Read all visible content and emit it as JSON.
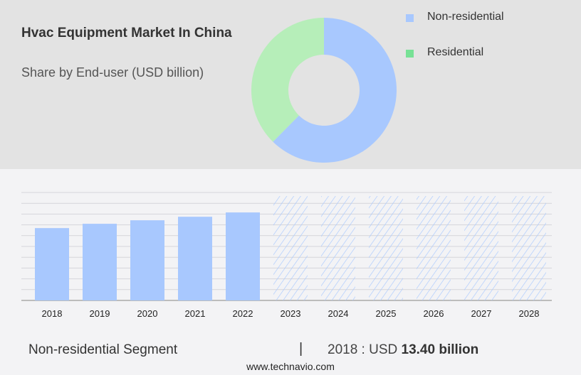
{
  "header": {
    "title": "Hvac Equipment Market In China",
    "subtitle": "Share by End-user (USD billion)"
  },
  "colors": {
    "non_residential": "#a8c8fe",
    "residential": "#b6eeb9",
    "residential_legend": "#77e195",
    "grid": "#d5d5da",
    "axis": "#aaaaaa"
  },
  "chart_data": [
    {
      "type": "pie",
      "style": "donut",
      "slices": [
        {
          "name": "Non-residential",
          "share": 62.4
        },
        {
          "name": "Residential",
          "share": 37.6
        }
      ],
      "legend": [
        "Non-residential",
        "Residential"
      ],
      "legend_placement": "right"
    },
    {
      "type": "bar",
      "categories": [
        "2018",
        "2019",
        "2020",
        "2021",
        "2022",
        "2023",
        "2024",
        "2025",
        "2026",
        "2027",
        "2028"
      ],
      "values": [
        13.4,
        14.2,
        14.85,
        15.5,
        16.3,
        null,
        null,
        null,
        null,
        null,
        null
      ],
      "forecast_categories": [
        "2023",
        "2024",
        "2025",
        "2026",
        "2027",
        "2028"
      ],
      "forecast_style": "hatched",
      "ylim": [
        0,
        20
      ],
      "grid": true,
      "xlabel": "",
      "ylabel": ""
    }
  ],
  "footer": {
    "segment": "Non-residential Segment",
    "separator": "|",
    "value_prefix": "2018 : USD",
    "value": "13.40 billion",
    "website": "www.technavio.com"
  }
}
